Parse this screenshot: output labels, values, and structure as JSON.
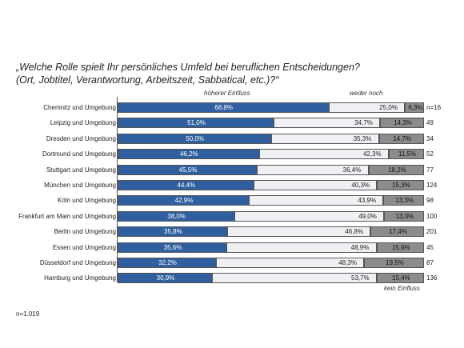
{
  "title_line1": "„Welche Rolle spielt Ihr persönliches Umfeld bei beruflichen Entscheidungen?",
  "title_line2": "(Ort, Jobtitel, Verantwortung,  Arbeitszeit, Sabbatical, etc.)?“",
  "footer_n": "n=1.019",
  "chart_data": {
    "type": "bar",
    "stacked": true,
    "orientation": "horizontal",
    "series": [
      {
        "name": "höherer Einfluss",
        "color": "#2f5f9e",
        "values": [
          68.8,
          51.0,
          50.0,
          46.2,
          45.5,
          44.4,
          42.9,
          38.0,
          35.8,
          35.6,
          32.2,
          30.9
        ]
      },
      {
        "name": "weder noch",
        "color": "#eef0f3",
        "values": [
          25.0,
          34.7,
          35.3,
          42.3,
          36.4,
          40.3,
          43.9,
          49.0,
          46.8,
          48.9,
          48.3,
          53.7
        ]
      },
      {
        "name": "kein Einfluss",
        "color": "#8c8c8c",
        "values": [
          6.3,
          14.3,
          14.7,
          11.5,
          18.2,
          15.3,
          13.3,
          13.0,
          17.4,
          15.6,
          19.5,
          15.4
        ]
      }
    ],
    "value_labels": [
      [
        "68,8%",
        "25,0%",
        "6,3%"
      ],
      [
        "51,0%",
        "34,7%",
        "14,3%"
      ],
      [
        "50,0%",
        "35,3%",
        "14,7%"
      ],
      [
        "46,2%",
        "42,3%",
        "11,5%"
      ],
      [
        "45,5%",
        "36,4%",
        "18,2%"
      ],
      [
        "44,4%",
        "40,3%",
        "15,3%"
      ],
      [
        "42,9%",
        "43,9%",
        "13,3%"
      ],
      [
        "38,0%",
        "49,0%",
        "13,0%"
      ],
      [
        "35,8%",
        "46,8%",
        "17,4%"
      ],
      [
        "35,6%",
        "48,9%",
        "15,6%"
      ],
      [
        "32,2%",
        "48,3%",
        "19,5%"
      ],
      [
        "30,9%",
        "53,7%",
        "15,4%"
      ]
    ],
    "categories": [
      "Chemnitz  und Umgebung",
      "Leipzig  und Umgebung",
      "Dresden  und Umgebung",
      "Dortmund  und Umgebung",
      "Stuttgart  und Umgebung",
      "München  und Umgebung",
      "Köln  und Umgebung",
      "Frankfurt  am Main  und Umgebung",
      "Berlin  und Umgebung",
      "Essen  und Umgebung",
      "Düsseldorf  und Umgebung",
      "Hamburg  und Umgebung"
    ],
    "n_labels": [
      "n=16",
      "49",
      "34",
      "52",
      "77",
      "124",
      "98",
      "100",
      "201",
      "45",
      "87",
      "136"
    ],
    "legend_labels": {
      "high": "höherer  Einfluss",
      "mid": "weder  noch",
      "low": "kein  Einfluss"
    }
  }
}
